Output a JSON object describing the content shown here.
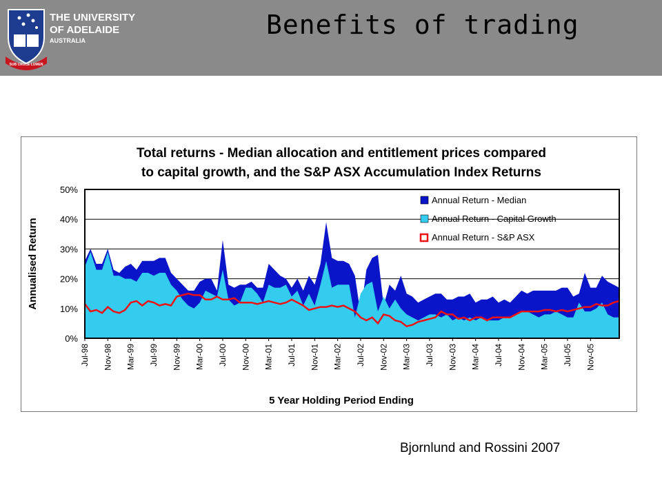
{
  "slide": {
    "title": "Benefits of trading",
    "citation": "Bjornlund and Rossini 2007"
  },
  "logo": {
    "line1": "THE UNIVERSITY",
    "line2": "OF ADELAIDE",
    "line3": "AUSTRALIA",
    "motto": "SUB CRUCE LUMEN"
  },
  "colors": {
    "header_bg": "#8a8a8a",
    "median": "#0a14c8",
    "capital_growth": "#33ccee",
    "asx": "#ee1111"
  },
  "chart_data": {
    "type": "area",
    "title_line1": "Total returns - Median allocation and entitlement prices compared",
    "title_line2": "to capital growth, and the S&P ASX Accumulation Index Returns",
    "xlabel": "5 Year Holding Period Ending",
    "ylabel": "Annualised Return",
    "ylim": [
      0,
      50
    ],
    "y_ticks": [
      "0%",
      "10%",
      "20%",
      "30%",
      "40%",
      "50%"
    ],
    "x_tick_labels": [
      "Jul-98",
      "Nov-98",
      "Mar-99",
      "Jul-99",
      "Nov-99",
      "Mar-00",
      "Jul-00",
      "Nov-00",
      "Mar-01",
      "Jul-01",
      "Nov-01",
      "Mar-02",
      "Jul-02",
      "Nov-02",
      "Mar-03",
      "Jul-03",
      "Nov-03",
      "Mar-04",
      "Jul-04",
      "Nov-04",
      "Mar-05",
      "Jul-05",
      "Nov-05"
    ],
    "months_per_tick": 4,
    "grid": true,
    "legend_position": "top-right",
    "series": [
      {
        "name": "Annual Return - Median",
        "style": "area",
        "values": [
          26,
          30,
          25,
          25,
          30,
          23,
          22,
          24,
          25,
          23,
          26,
          26,
          26,
          27,
          27,
          22,
          20,
          18,
          16,
          16,
          19,
          20,
          20,
          16,
          33,
          18,
          17,
          18,
          18,
          19,
          17,
          17,
          25,
          23,
          21,
          20,
          17,
          20,
          16,
          21,
          18,
          25,
          39,
          27,
          26,
          26,
          25,
          21,
          8,
          23,
          27,
          28,
          11,
          18,
          16,
          21,
          15,
          14,
          12,
          13,
          14,
          15,
          15,
          13,
          13,
          14,
          14,
          15,
          12,
          13,
          13,
          14,
          12,
          13,
          12,
          14,
          16,
          15,
          16,
          16,
          16,
          16,
          16,
          17,
          17,
          14,
          15,
          22,
          17,
          17,
          21,
          19,
          18,
          17
        ]
      },
      {
        "name": "Annual Return - Capital Growth",
        "style": "area",
        "values": [
          24,
          29,
          23,
          23,
          29,
          21,
          21,
          20,
          20,
          19,
          22,
          22,
          21,
          22,
          22,
          18,
          16,
          13,
          11,
          10,
          12,
          16,
          15,
          14,
          23,
          13,
          11,
          12,
          17,
          17,
          15,
          12,
          18,
          17,
          17,
          18,
          14,
          16,
          11,
          15,
          11,
          18,
          26,
          17,
          18,
          18,
          18,
          7,
          15,
          18,
          19,
          9,
          14,
          10,
          13,
          10,
          8,
          7,
          6,
          7,
          8,
          8,
          7,
          8,
          6,
          7,
          6,
          7,
          6,
          7,
          6,
          6,
          6,
          7,
          7,
          8,
          9,
          9,
          8,
          7,
          8,
          8,
          9,
          8,
          7,
          7,
          12,
          9,
          9,
          10,
          12,
          8,
          7,
          7
        ]
      },
      {
        "name": "Annual Return - S&P ASX",
        "style": "line",
        "values": [
          11.5,
          9,
          9.5,
          8.5,
          10.5,
          9,
          8.5,
          9.5,
          12,
          12.5,
          11,
          12.5,
          12,
          11,
          11.5,
          11,
          14,
          14.5,
          15,
          14.5,
          14.5,
          13,
          13,
          14,
          13,
          13,
          13.5,
          12,
          12,
          12,
          11.5,
          12,
          12.5,
          12,
          11.5,
          12,
          13,
          12,
          11,
          9.5,
          10,
          10.5,
          10.5,
          11,
          10.5,
          11,
          10,
          9,
          7,
          6,
          7,
          5,
          8,
          7.5,
          6,
          5.5,
          4,
          4.5,
          5.5,
          6,
          6.5,
          7,
          9,
          8,
          8,
          6.5,
          7,
          6,
          7,
          7,
          6,
          7,
          7,
          7,
          7,
          8,
          9,
          9,
          9,
          9,
          9.5,
          9.5,
          9,
          9.5,
          9,
          9.5,
          10,
          10.5,
          10.5,
          11.5,
          11,
          11,
          12,
          12.5
        ]
      }
    ]
  }
}
